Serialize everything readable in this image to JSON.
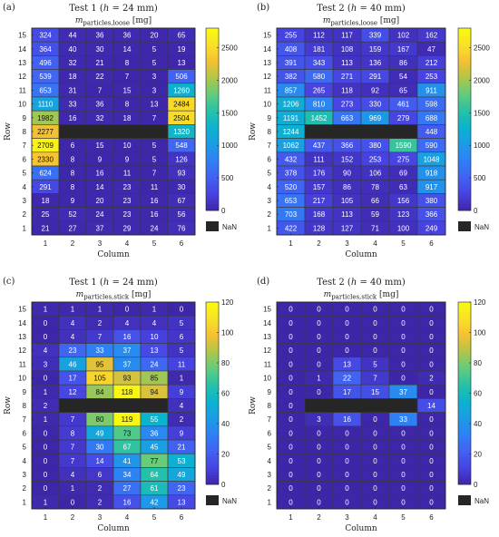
{
  "figure": {
    "colors": {
      "nan": "#262626",
      "grid": "#3a3a3a",
      "colormap": [
        "#3e26a8",
        "#4743e2",
        "#4262f2",
        "#2f80f5",
        "#1b9ce6",
        "#0ab3cf",
        "#27c2a7",
        "#63cc7d",
        "#b0c649",
        "#f5c033",
        "#f9e127",
        "#f9fb0e"
      ]
    },
    "colorbar_nan_label": "NaN",
    "x_tick_labels": [
      "1",
      "2",
      "3",
      "4",
      "5",
      "6"
    ],
    "y_tick_labels": [
      "15",
      "14",
      "13",
      "12",
      "11",
      "10",
      "9",
      "8",
      "7",
      "6",
      "5",
      "4",
      "3",
      "2",
      "1"
    ]
  },
  "chart_data": [
    {
      "type": "heatmap",
      "panel_label": "(a)",
      "title": "Test 1 (h = 24 mm)",
      "subtitle": "m_particles,loose [mg]",
      "xlabel": "Column",
      "ylabel": "Row",
      "x": [
        "1",
        "2",
        "3",
        "4",
        "5",
        "6"
      ],
      "y": [
        "15",
        "14",
        "13",
        "12",
        "11",
        "10",
        "9",
        "8",
        "7",
        "6",
        "5",
        "4",
        "3",
        "2",
        "1"
      ],
      "clim": [
        0,
        2800
      ],
      "colorbar_ticks": [
        0,
        500,
        1000,
        1500,
        2000,
        2500
      ],
      "values": [
        [
          324,
          44,
          36,
          36,
          20,
          65
        ],
        [
          364,
          40,
          30,
          14,
          5,
          19
        ],
        [
          496,
          32,
          21,
          8,
          5,
          13
        ],
        [
          539,
          18,
          22,
          7,
          3,
          506
        ],
        [
          653,
          31,
          7,
          15,
          3,
          1260
        ],
        [
          1110,
          33,
          36,
          8,
          13,
          2484
        ],
        [
          1982,
          16,
          32,
          18,
          7,
          2504
        ],
        [
          2277,
          null,
          null,
          null,
          null,
          1320
        ],
        [
          2709,
          6,
          15,
          10,
          5,
          548
        ],
        [
          2330,
          8,
          9,
          9,
          5,
          126
        ],
        [
          624,
          8,
          16,
          11,
          7,
          93
        ],
        [
          291,
          8,
          14,
          23,
          11,
          30
        ],
        [
          18,
          9,
          20,
          23,
          16,
          67
        ],
        [
          25,
          52,
          24,
          23,
          16,
          56
        ],
        [
          21,
          27,
          37,
          29,
          24,
          76
        ]
      ]
    },
    {
      "type": "heatmap",
      "panel_label": "(b)",
      "title": "Test 2 (h = 40 mm)",
      "subtitle": "m_particles,loose [mg]",
      "xlabel": "Column",
      "ylabel": "Row",
      "x": [
        "1",
        "2",
        "3",
        "4",
        "5",
        "6"
      ],
      "y": [
        "15",
        "14",
        "13",
        "12",
        "11",
        "10",
        "9",
        "8",
        "7",
        "6",
        "5",
        "4",
        "3",
        "2",
        "1"
      ],
      "clim": [
        0,
        2800
      ],
      "colorbar_ticks": [
        0,
        500,
        1000,
        1500,
        2000,
        2500
      ],
      "values": [
        [
          255,
          112,
          117,
          339,
          102,
          162
        ],
        [
          408,
          181,
          108,
          159,
          167,
          47
        ],
        [
          391,
          343,
          113,
          136,
          86,
          212
        ],
        [
          382,
          580,
          271,
          291,
          54,
          253
        ],
        [
          857,
          265,
          118,
          92,
          65,
          911
        ],
        [
          1206,
          810,
          273,
          330,
          461,
          598
        ],
        [
          1191,
          1452,
          663,
          969,
          279,
          688
        ],
        [
          1244,
          null,
          null,
          null,
          null,
          448
        ],
        [
          1062,
          437,
          366,
          380,
          1590,
          590
        ],
        [
          432,
          111,
          152,
          253,
          275,
          1048
        ],
        [
          378,
          176,
          90,
          106,
          69,
          918
        ],
        [
          520,
          157,
          86,
          78,
          63,
          917
        ],
        [
          653,
          217,
          105,
          66,
          156,
          380
        ],
        [
          703,
          168,
          113,
          59,
          123,
          366
        ],
        [
          422,
          128,
          127,
          71,
          100,
          249
        ]
      ]
    },
    {
      "type": "heatmap",
      "panel_label": "(c)",
      "title": "Test 1 (h = 24 mm)",
      "subtitle": "m_particles,stick [mg]",
      "xlabel": "Column",
      "ylabel": "Row",
      "x": [
        "1",
        "2",
        "3",
        "4",
        "5",
        "6"
      ],
      "y": [
        "15",
        "14",
        "13",
        "12",
        "11",
        "10",
        "9",
        "8",
        "7",
        "6",
        "5",
        "4",
        "3",
        "2",
        "1"
      ],
      "clim": [
        0,
        120
      ],
      "colorbar_ticks": [
        0,
        20,
        40,
        60,
        80,
        100,
        120
      ],
      "values": [
        [
          1,
          1,
          1,
          0,
          1,
          0
        ],
        [
          0,
          4,
          2,
          4,
          4,
          5
        ],
        [
          0,
          4,
          7,
          16,
          10,
          6
        ],
        [
          4,
          23,
          33,
          37,
          13,
          5
        ],
        [
          3,
          46,
          95,
          37,
          24,
          11
        ],
        [
          0,
          17,
          105,
          93,
          85,
          1
        ],
        [
          1,
          12,
          84,
          118,
          94,
          9
        ],
        [
          2,
          null,
          null,
          null,
          null,
          4
        ],
        [
          1,
          7,
          80,
          119,
          55,
          2
        ],
        [
          0,
          8,
          49,
          73,
          36,
          9
        ],
        [
          0,
          7,
          30,
          67,
          45,
          21
        ],
        [
          0,
          7,
          14,
          41,
          77,
          53
        ],
        [
          0,
          4,
          6,
          34,
          64,
          49
        ],
        [
          0,
          1,
          2,
          27,
          61,
          23
        ],
        [
          1,
          0,
          2,
          16,
          42,
          13
        ]
      ]
    },
    {
      "type": "heatmap",
      "panel_label": "(d)",
      "title": "Test 2 (h = 40 mm)",
      "subtitle": "m_particles,stick [mg]",
      "xlabel": "Column",
      "ylabel": "Row",
      "x": [
        "1",
        "2",
        "3",
        "4",
        "5",
        "6"
      ],
      "y": [
        "15",
        "14",
        "13",
        "12",
        "11",
        "10",
        "9",
        "8",
        "7",
        "6",
        "5",
        "4",
        "3",
        "2",
        "1"
      ],
      "clim": [
        0,
        120
      ],
      "colorbar_ticks": [
        0,
        20,
        40,
        60,
        80,
        100,
        120
      ],
      "values": [
        [
          0,
          0,
          0,
          0,
          0,
          0
        ],
        [
          0,
          0,
          0,
          0,
          0,
          0
        ],
        [
          0,
          0,
          0,
          0,
          0,
          0
        ],
        [
          0,
          0,
          0,
          0,
          0,
          0
        ],
        [
          0,
          0,
          13,
          5,
          0,
          0
        ],
        [
          0,
          1,
          22,
          7,
          0,
          2
        ],
        [
          0,
          0,
          17,
          15,
          37,
          0
        ],
        [
          0,
          null,
          null,
          null,
          null,
          14
        ],
        [
          0,
          3,
          16,
          0,
          33,
          0
        ],
        [
          0,
          0,
          0,
          0,
          0,
          0
        ],
        [
          0,
          0,
          0,
          0,
          0,
          0
        ],
        [
          0,
          0,
          0,
          0,
          0,
          0
        ],
        [
          0,
          0,
          0,
          0,
          0,
          0
        ],
        [
          0,
          0,
          0,
          0,
          0,
          0
        ],
        [
          0,
          0,
          0,
          0,
          0,
          0
        ]
      ]
    }
  ]
}
